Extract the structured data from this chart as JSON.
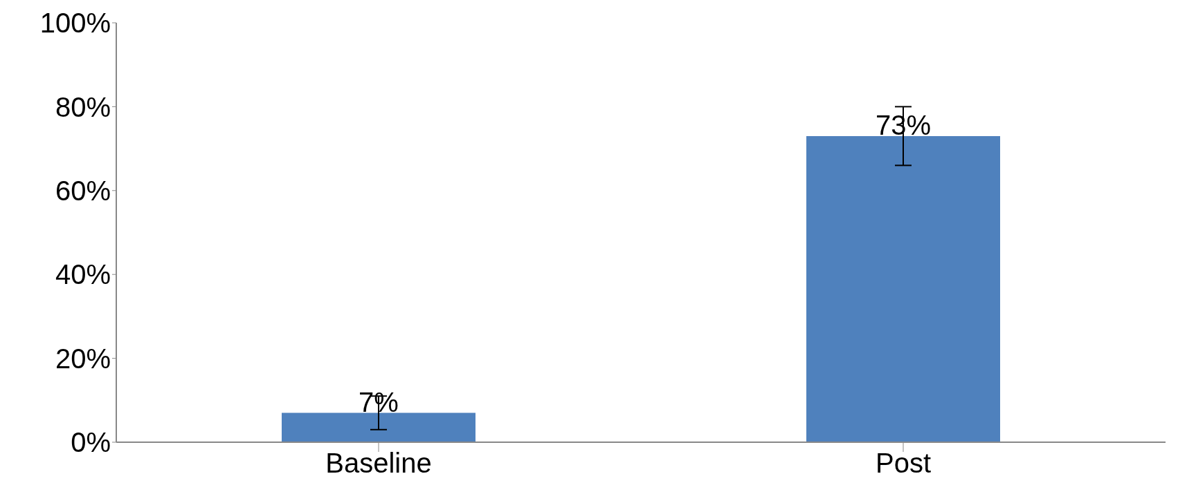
{
  "chart_data": {
    "type": "bar",
    "categories": [
      "Baseline",
      "Post"
    ],
    "values": [
      7,
      73
    ],
    "errors": [
      4,
      7
    ],
    "color": "#4f81bd",
    "value_labels": [
      "7%",
      "73%"
    ],
    "ylim": [
      0,
      100
    ],
    "yticks": [
      {
        "value": 0,
        "label": "0%"
      },
      {
        "value": 20,
        "label": "20%"
      },
      {
        "value": 40,
        "label": "40%"
      },
      {
        "value": 60,
        "label": "60%"
      },
      {
        "value": 80,
        "label": "80%"
      },
      {
        "value": 100,
        "label": "100%"
      }
    ],
    "grid": false,
    "legend": false
  }
}
